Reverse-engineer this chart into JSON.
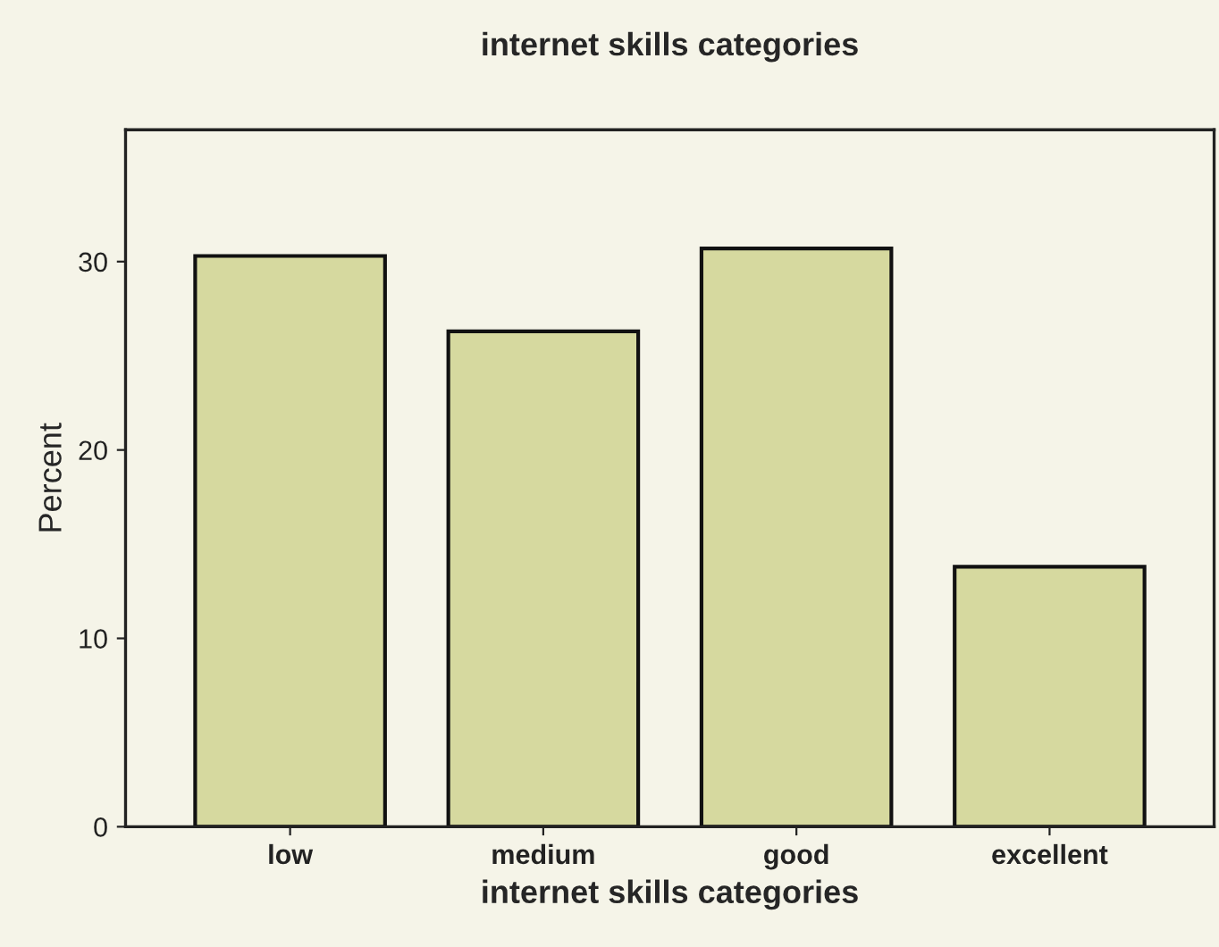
{
  "chart_data": {
    "type": "bar",
    "title": "internet skills categories",
    "xlabel": "internet skills categories",
    "ylabel": "Percent",
    "categories": [
      "low",
      "medium",
      "good",
      "excellent"
    ],
    "values": [
      30.3,
      26.3,
      30.7,
      13.8
    ],
    "color": "#d6d99f",
    "ylim": [
      0,
      37
    ],
    "yticks": [
      0,
      10,
      20,
      30
    ],
    "grid": false,
    "legend": false
  }
}
